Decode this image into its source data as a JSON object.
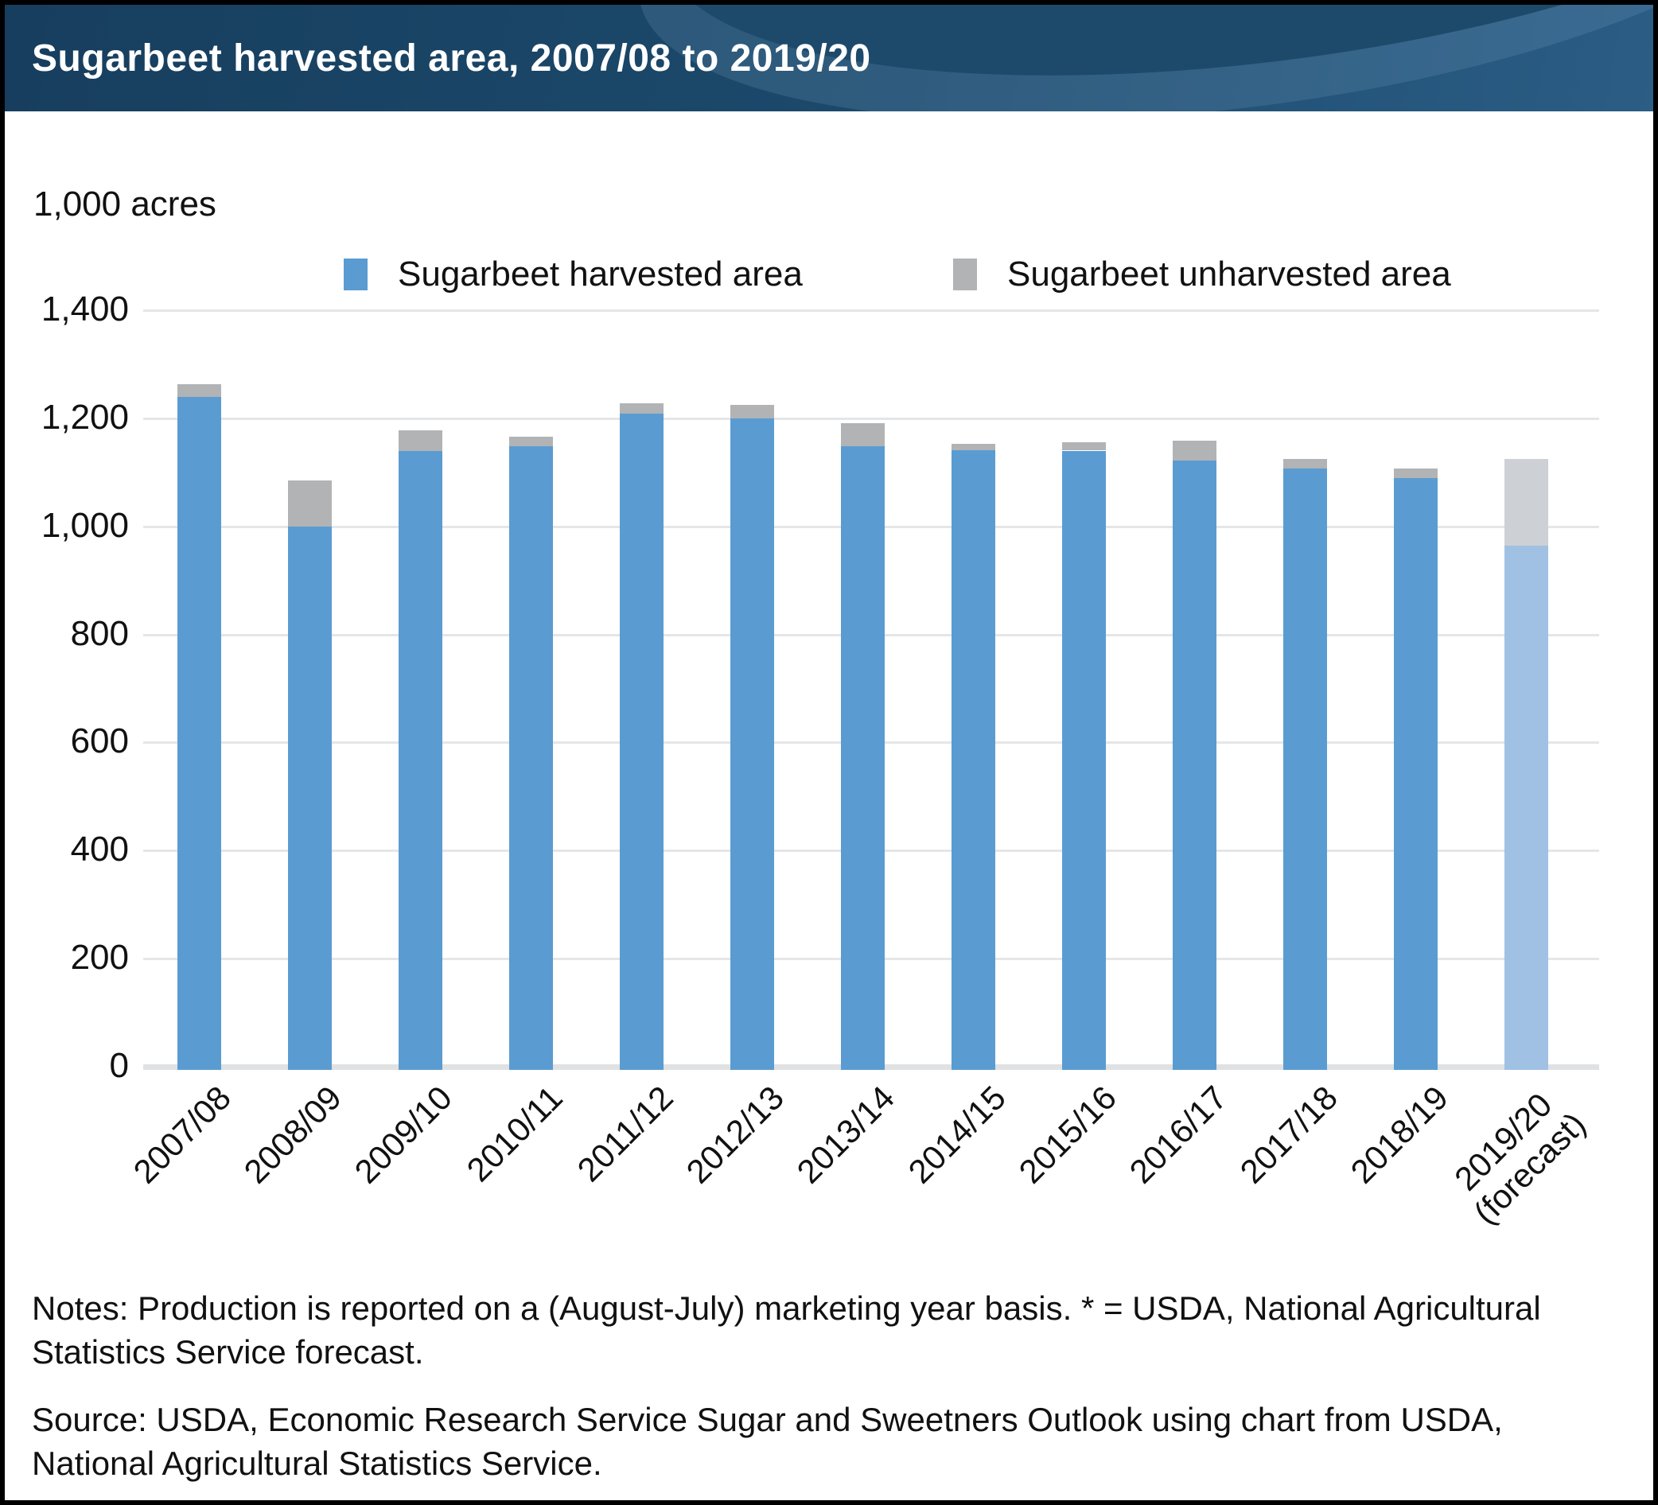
{
  "header": {
    "title": "Sugarbeet harvested area, 2007/08 to 2019/20"
  },
  "chart_data": {
    "type": "bar",
    "stacked": true,
    "title": "Sugarbeet harvested area, 2007/08 to 2019/20",
    "unit_label": "1,000 acres",
    "categories": [
      "2007/08",
      "2008/09",
      "2009/10",
      "2010/11",
      "2011/12",
      "2012/13",
      "2013/14",
      "2014/15",
      "2015/16",
      "2016/17",
      "2017/18",
      "2018/19",
      "2019/20 (forecast)"
    ],
    "series": [
      {
        "name": "Sugarbeet harvested area",
        "color": "#5a9cd1",
        "forecast_color": "#a0c1e4",
        "values": [
          1246,
          1005,
          1146,
          1155,
          1214,
          1205,
          1155,
          1147,
          1146,
          1128,
          1113,
          1095,
          971
        ]
      },
      {
        "name": "Sugarbeet unharvested area",
        "color": "#b1b3b5",
        "forecast_color": "#cdd0d4",
        "values": [
          23,
          86,
          38,
          17,
          19,
          25,
          42,
          12,
          15,
          37,
          18,
          18,
          160
        ]
      }
    ],
    "forecast_index": 12,
    "ylim": [
      0,
      1400
    ],
    "yticks": [
      0,
      200,
      400,
      600,
      800,
      1000,
      1200,
      1400
    ],
    "grid": true,
    "legend_position": "top"
  },
  "notes": {
    "notes_text": "Notes: Production is reported on a (August-July) marketing year basis. * = USDA, National Agricultural Statistics Service forecast.",
    "source_text": "Source: USDA, Economic Research Service Sugar and Sweetners Outlook using chart from USDA, National Agricultural Statistics Service."
  }
}
